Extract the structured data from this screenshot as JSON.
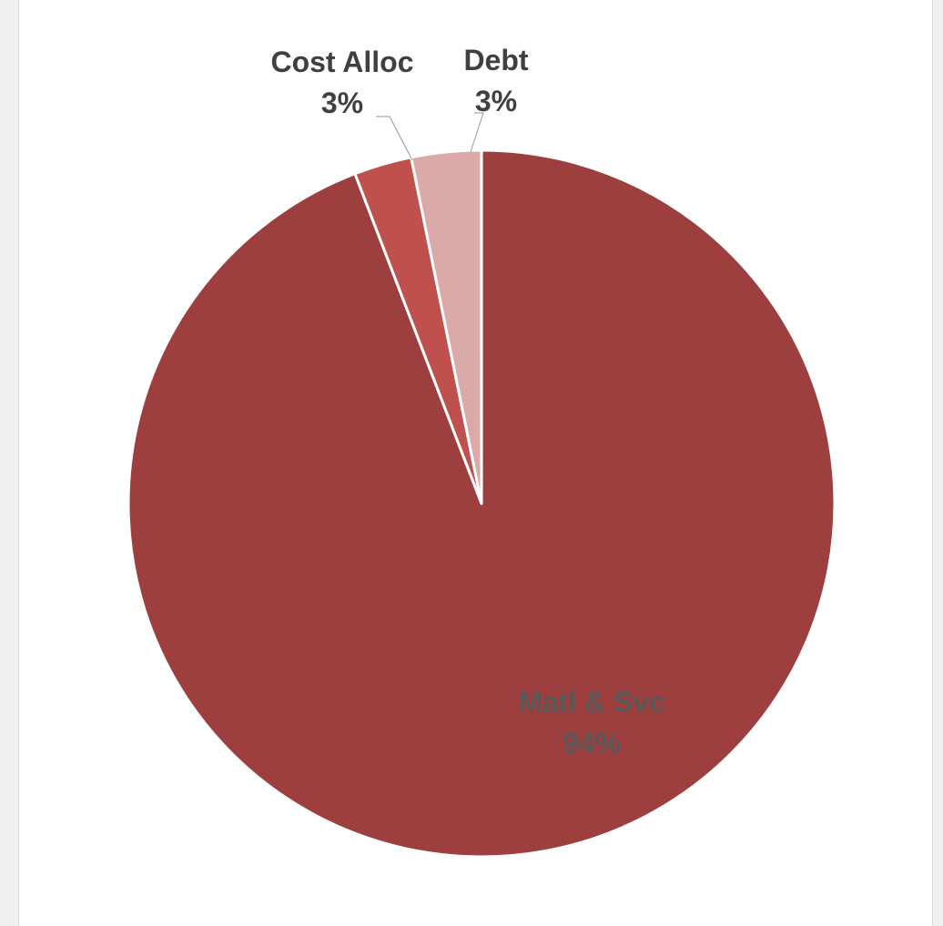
{
  "chart_data": {
    "type": "pie",
    "start_angle_deg": 0,
    "direction": "clockwise",
    "slices": [
      {
        "name": "Matl & Svc",
        "value": 94,
        "label": "94%",
        "color": "#9C3F3E"
      },
      {
        "name": "Cost Alloc",
        "value": 3,
        "label": "3%",
        "color": "#C0504D"
      },
      {
        "name": "Debt",
        "value": 3,
        "label": "3%",
        "color": "#DBA9A8"
      }
    ],
    "title": "",
    "legend": "none",
    "data_labels": "category name and percentage"
  }
}
